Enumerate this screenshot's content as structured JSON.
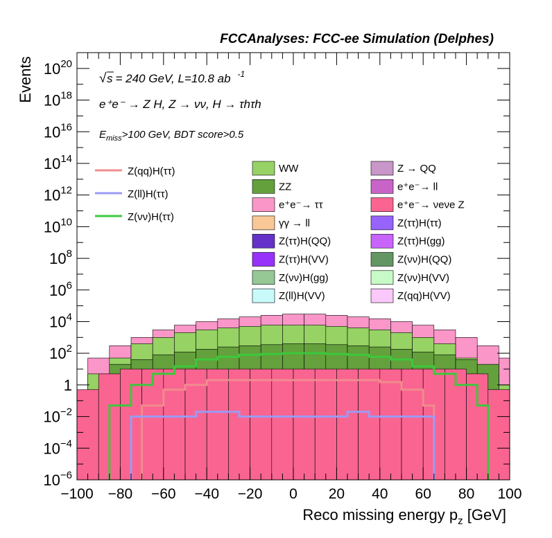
{
  "header": {
    "title": "FCCAnalyses: FCC-ee Simulation (Delphes)"
  },
  "annotations": {
    "sqrt_s": "s",
    "energy_lumi": "= 240 GeV, L=10.8 ab",
    "lumi_exp": "-1",
    "process": "e⁺e⁻ → Z H, Z → νν, H → τhτh",
    "cuts_prefix": "E",
    "cuts_sub": "miss",
    "cuts_rest": ">100 GeV, BDT score>0.5"
  },
  "chart_data": {
    "type": "area",
    "title": "FCCAnalyses: FCC-ee Simulation (Delphes)",
    "xlabel": "Reco missing energy p",
    "xlabel_sub": "z",
    "xlabel_unit": " [GeV]",
    "ylabel": "Events",
    "xlim": [
      -100,
      100
    ],
    "ylim": [
      1e-06,
      1e+21
    ],
    "log_y": true,
    "x_ticks": [
      "−100",
      "−80",
      "−60",
      "−40",
      "−20",
      "0",
      "20",
      "40",
      "60",
      "80",
      "100"
    ],
    "y_ticks": [
      {
        "base": "10",
        "exp": "−6"
      },
      {
        "base": "10",
        "exp": "−4"
      },
      {
        "base": "10",
        "exp": "−2"
      },
      {
        "base": "1",
        "exp": ""
      },
      {
        "base": "10",
        "exp": "2"
      },
      {
        "base": "10",
        "exp": "4"
      },
      {
        "base": "10",
        "exp": "6"
      },
      {
        "base": "10",
        "exp": "8"
      },
      {
        "base": "10",
        "exp": "10"
      },
      {
        "base": "10",
        "exp": "12"
      },
      {
        "base": "10",
        "exp": "14"
      },
      {
        "base": "10",
        "exp": "16"
      },
      {
        "base": "10",
        "exp": "18"
      },
      {
        "base": "10",
        "exp": "20"
      }
    ],
    "legend_lines": [
      {
        "name": "Z(qq)H(ττ)",
        "color": "#f08c8c"
      },
      {
        "name": "Z(ll)H(ττ)",
        "color": "#9b9bf5"
      },
      {
        "name": "Z(νν)H(ττ)",
        "color": "#3cc83c"
      }
    ],
    "legend_stack": [
      {
        "name": "WW",
        "color": "#96d264"
      },
      {
        "name": "Z → QQ",
        "color": "#c896c8"
      },
      {
        "name": "ZZ",
        "color": "#64a03c"
      },
      {
        "name": "e⁺e⁻→ ll",
        "color": "#c864c8"
      },
      {
        "name": "e⁺e⁻→ ττ",
        "color": "#fa96c8"
      },
      {
        "name": "e⁺e⁻→ νeνe Z",
        "color": "#fa6491"
      },
      {
        "name": "γγ → ll",
        "color": "#fac896"
      },
      {
        "name": "Z(ττ)H(ττ)",
        "color": "#9664fa"
      },
      {
        "name": "Z(ττ)H(QQ)",
        "color": "#6432c8"
      },
      {
        "name": "Z(ττ)H(gg)",
        "color": "#c864fa"
      },
      {
        "name": "Z(ττ)H(VV)",
        "color": "#9632fa"
      },
      {
        "name": "Z(νν)H(QQ)",
        "color": "#649664"
      },
      {
        "name": "Z(νν)H(gg)",
        "color": "#96c896"
      },
      {
        "name": "Z(νν)H(VV)",
        "color": "#c8fac8"
      },
      {
        "name": "Z(ll)H(VV)",
        "color": "#c8fafa"
      },
      {
        "name": "Z(qq)H(VV)",
        "color": "#fac8fa"
      }
    ],
    "series": [
      {
        "name": "e⁺e⁻→ ττ",
        "color": "#fa96c8",
        "x_edges": [
          -95,
          -85,
          -75,
          -65,
          -55,
          -45,
          -35,
          -25,
          -15,
          -5,
          5,
          15,
          25,
          35,
          45,
          55,
          65,
          75,
          85,
          95
        ],
        "values": [
          50.0,
          300.0,
          1000.0,
          3000.0,
          6000.0,
          10000.0,
          15000.0,
          20000.0,
          25000.0,
          30000.0,
          30000.0,
          25000.0,
          20000.0,
          15000.0,
          10000.0,
          6000.0,
          3000.0,
          1000.0,
          300.0,
          50.0
        ]
      },
      {
        "name": "WW",
        "color": "#96d264",
        "x_edges": [
          -95,
          -85,
          -75,
          -65,
          -55,
          -45,
          -35,
          -25,
          -15,
          -5,
          5,
          15,
          25,
          35,
          45,
          55,
          65,
          75,
          85,
          95
        ],
        "values": [
          5,
          50,
          400,
          1000,
          2000,
          3000,
          4000,
          5000,
          6000,
          6000,
          6000,
          5000,
          4000,
          3000,
          2000,
          1000,
          400,
          50,
          5,
          1
        ]
      },
      {
        "name": "ZZ",
        "color": "#64a03c",
        "x_edges": [
          -85,
          -75,
          -65,
          -55,
          -45,
          -35,
          -25,
          -15,
          -5,
          5,
          15,
          25,
          35,
          45,
          55,
          65,
          75,
          85
        ],
        "values": [
          20,
          40,
          80,
          120,
          180,
          250,
          300,
          350,
          400,
          400,
          350,
          300,
          250,
          180,
          120,
          80,
          40,
          20
        ]
      },
      {
        "name": "e⁺e⁻→ νeνe Z",
        "color": "#fa6491",
        "x_edges": [
          -100,
          -90,
          -80,
          -70,
          -60,
          -50,
          -40,
          -30,
          -20,
          -10,
          0,
          10,
          20,
          30,
          40,
          50,
          60,
          70,
          80,
          90
        ],
        "values": [
          0.5,
          5,
          10,
          10,
          10,
          10,
          10,
          10,
          10,
          10,
          10,
          10,
          10,
          10,
          10,
          10,
          10,
          10,
          5,
          0.5
        ]
      }
    ],
    "signal_lines": [
      {
        "name": "Z(νν)H(ττ)",
        "color": "#3cc83c",
        "x_edges": [
          -85,
          -75,
          -65,
          -55,
          -45,
          -35,
          -25,
          -15,
          -5,
          5,
          15,
          25,
          35,
          45,
          55,
          65,
          75,
          85
        ],
        "values": [
          0.05,
          1,
          5,
          15,
          40,
          60,
          80,
          90,
          100,
          100,
          90,
          80,
          60,
          40,
          15,
          5,
          1,
          0.05
        ]
      },
      {
        "name": "Z(qq)H(ττ)",
        "color": "#f08c8c",
        "x_edges": [
          -70,
          -60,
          -50,
          -40,
          -30,
          -20,
          -10,
          0,
          10,
          20,
          30,
          40,
          50,
          60
        ],
        "values": [
          0.05,
          0.5,
          1,
          2,
          2,
          2,
          2,
          2,
          2,
          2,
          2,
          1.5,
          0.5,
          0.05
        ]
      },
      {
        "name": "Z(ll)H(ττ)",
        "color": "#9b9bf5",
        "x_edges": [
          -75,
          -65,
          -55,
          -45,
          -35,
          -25,
          -15,
          -5,
          5,
          15,
          25,
          35,
          45,
          55,
          60
        ],
        "values": [
          0.01,
          0.01,
          0.01,
          0.02,
          0.02,
          0.01,
          0.01,
          0.01,
          0.01,
          0.01,
          0.02,
          0.01,
          0.01,
          0.01,
          0.01
        ]
      }
    ]
  }
}
